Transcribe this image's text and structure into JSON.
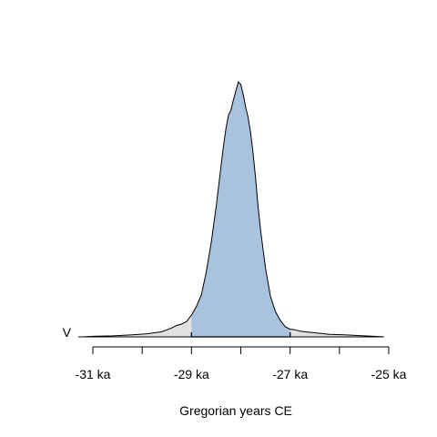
{
  "chart_data": {
    "type": "area",
    "series_label": "V",
    "xlabel": "Gregorian years CE",
    "x_ticks": [
      -31000,
      -30000,
      -29000,
      -28000,
      -27000,
      -26000,
      -25000
    ],
    "x_tick_labels": [
      {
        "value": -31000,
        "label": "-31 ka"
      },
      {
        "value": -29000,
        "label": "-29 ka"
      },
      {
        "value": -27000,
        "label": "-27 ka"
      },
      {
        "value": -25000,
        "label": "-25 ka"
      }
    ],
    "xlim": [
      -31000,
      -25000
    ],
    "density_x": [
      -31200,
      -31000,
      -30600,
      -30200,
      -29900,
      -29600,
      -29400,
      -29300,
      -29200,
      -29100,
      -29000,
      -28900,
      -28800,
      -28700,
      -28600,
      -28500,
      -28450,
      -28400,
      -28350,
      -28300,
      -28250,
      -28200,
      -28150,
      -28100,
      -28050,
      -28000,
      -27950,
      -27900,
      -27850,
      -27800,
      -27750,
      -27700,
      -27650,
      -27600,
      -27500,
      -27400,
      -27300,
      -27200,
      -27100,
      -27000,
      -26900,
      -26800,
      -26600,
      -26400,
      -26200,
      -25900,
      -25600,
      -25300,
      -25100
    ],
    "density_y": [
      0.0,
      0.002,
      0.004,
      0.008,
      0.012,
      0.02,
      0.035,
      0.045,
      0.05,
      0.06,
      0.085,
      0.12,
      0.165,
      0.255,
      0.37,
      0.51,
      0.59,
      0.67,
      0.75,
      0.82,
      0.87,
      0.89,
      0.93,
      0.965,
      1.0,
      0.99,
      0.95,
      0.9,
      0.86,
      0.8,
      0.72,
      0.62,
      0.51,
      0.42,
      0.27,
      0.16,
      0.1,
      0.065,
      0.04,
      0.03,
      0.028,
      0.022,
      0.018,
      0.014,
      0.01,
      0.008,
      0.005,
      0.002,
      0.0
    ],
    "credible_interval": [
      -29000,
      -27000
    ],
    "colors": {
      "interval_fill": "#a9c3df",
      "outer_fill": "#e2e2e2",
      "outline": "#000000"
    }
  }
}
